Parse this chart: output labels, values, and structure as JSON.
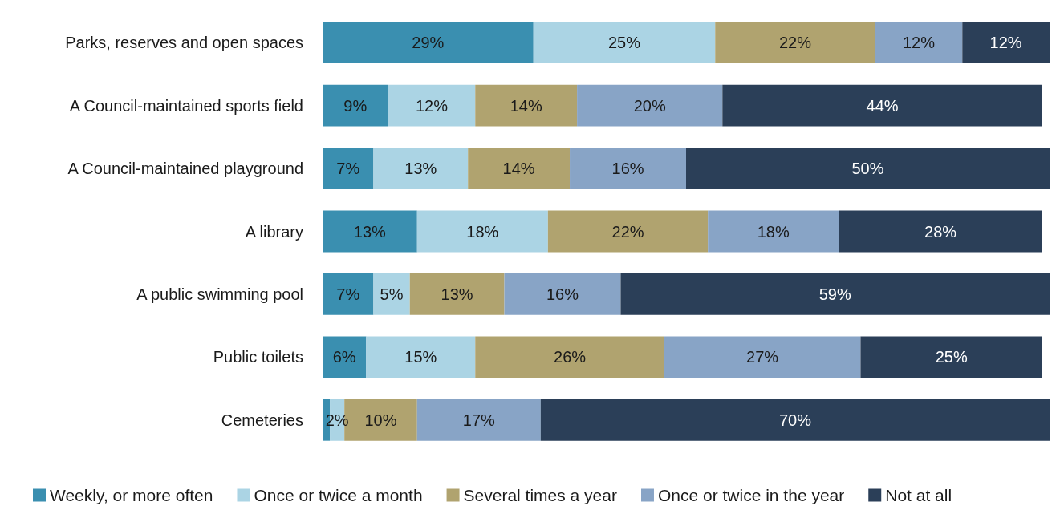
{
  "chart_data": {
    "type": "bar",
    "orientation": "horizontal",
    "stacked": true,
    "legend": "bottom",
    "xlim": [
      0,
      100
    ],
    "tick_labels": "y",
    "categories": [
      "Parks, reserves and open spaces",
      "A Council-maintained sports field",
      "A Council-maintained playground",
      "A library",
      "A public swimming pool",
      "Public toilets",
      "Cemeteries"
    ],
    "series": [
      {
        "name": "Weekly, or more often",
        "color": "#3a8fb0",
        "values": [
          29,
          9,
          7,
          13,
          7,
          6,
          1
        ],
        "value_labels": [
          "29%",
          "9%",
          "7%",
          "13%",
          "7%",
          "6%",
          null
        ]
      },
      {
        "name": "Once or twice a month",
        "color": "#abd4e4",
        "values": [
          25,
          12,
          13,
          18,
          5,
          15,
          2
        ],
        "value_labels": [
          "25%",
          "12%",
          "13%",
          "18%",
          "5%",
          "15%",
          "2%"
        ]
      },
      {
        "name": "Several times a year",
        "color": "#b0a36f",
        "values": [
          22,
          14,
          14,
          22,
          13,
          26,
          10
        ],
        "value_labels": [
          "22%",
          "14%",
          "14%",
          "22%",
          "13%",
          "26%",
          "10%"
        ]
      },
      {
        "name": "Once or twice in the year",
        "color": "#88a4c6",
        "values": [
          12,
          20,
          16,
          18,
          16,
          27,
          17
        ],
        "value_labels": [
          "12%",
          "20%",
          "16%",
          "18%",
          "16%",
          "27%",
          "17%"
        ]
      },
      {
        "name": "Not at all",
        "color": "#2b3f58",
        "values": [
          12,
          44,
          50,
          28,
          59,
          25,
          70
        ],
        "value_labels": [
          "12%",
          "44%",
          "50%",
          "28%",
          "59%",
          "25%",
          "70%"
        ]
      }
    ]
  }
}
